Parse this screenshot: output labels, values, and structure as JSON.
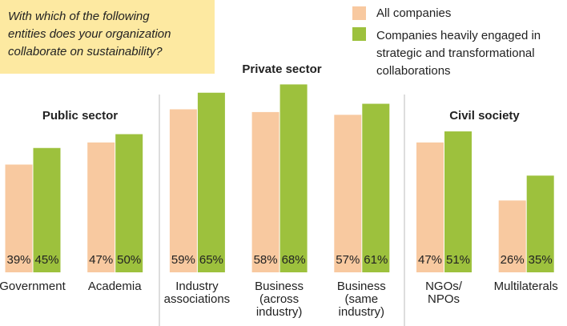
{
  "chart_data": {
    "type": "bar",
    "question": [
      "With which of the following",
      "entities does your organization",
      "collaborate on sustainability?"
    ],
    "groups": [
      "Public sector",
      "Private sector",
      "Civil society"
    ],
    "categories": [
      [
        "Government"
      ],
      [
        "Academia"
      ],
      [
        "Industry",
        "associations"
      ],
      [
        "Business",
        "(across",
        "industry)"
      ],
      [
        "Business",
        "(same",
        "industry)"
      ],
      [
        "NGOs/",
        "NPOs"
      ],
      [
        "Multilaterals"
      ]
    ],
    "series": [
      {
        "name": "All companies",
        "color": "#f8c9a0",
        "values": [
          39,
          47,
          59,
          58,
          57,
          47,
          26
        ],
        "value_labels": [
          "39%",
          "47%",
          "59%",
          "58%",
          "57%",
          "47%",
          "26%"
        ]
      },
      {
        "name": "Companies heavily engaged in strategic and transformational collaborations",
        "color": "#9dc13d",
        "values": [
          45,
          50,
          65,
          68,
          61,
          51,
          35
        ],
        "value_labels": [
          "45%",
          "50%",
          "65%",
          "68%",
          "61%",
          "51%",
          "35%"
        ]
      }
    ]
  }
}
